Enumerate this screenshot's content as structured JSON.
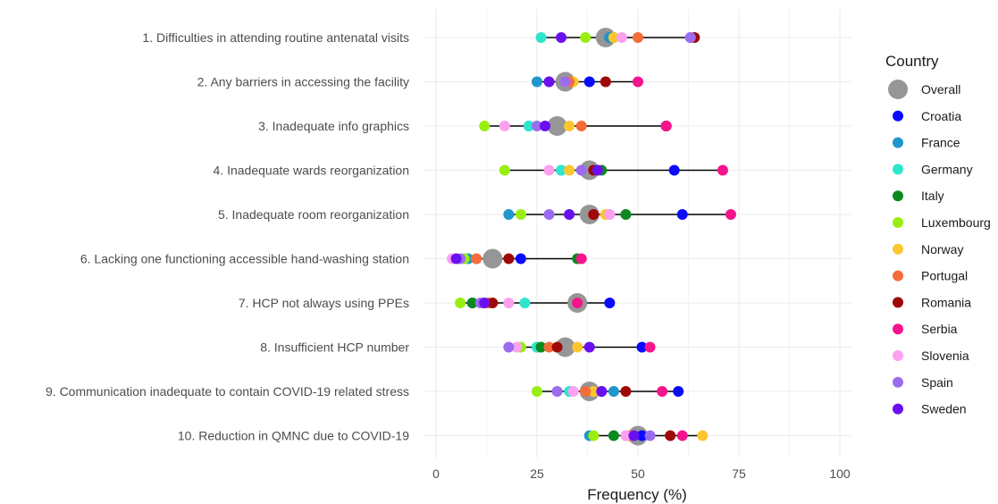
{
  "chart_data": {
    "type": "scatter",
    "subtype": "dumbbell",
    "xlabel": "Frequency (%)",
    "xlim": [
      0,
      100
    ],
    "xticks": [
      "0",
      "25",
      "50",
      "75",
      "100"
    ],
    "grid": true,
    "legend": {
      "title": "Country",
      "placement": "right",
      "entries": [
        "Overall",
        "Croatia",
        "France",
        "Germany",
        "Italy",
        "Luxembourg",
        "Norway",
        "Portugal",
        "Romania",
        "Serbia",
        "Slovenia",
        "Spain",
        "Sweden"
      ]
    },
    "colors": {
      "Overall": "#969696",
      "Croatia": "#0a0aff",
      "France": "#1f96cc",
      "Germany": "#2ee6cc",
      "Italy": "#0a8a1e",
      "Luxembourg": "#99ee11",
      "Norway": "#fcc62e",
      "Portugal": "#f56b3a",
      "Romania": "#a00808",
      "Serbia": "#f5148c",
      "Slovenia": "#fca0f0",
      "Spain": "#9c6cf0",
      "Sweden": "#6a10f0"
    },
    "categories": [
      "1. Difficulties in attending routine antenatal visits",
      "2. Any barriers in accessing the facility",
      "3. Inadequate info graphics",
      "4. Inadequate wards reorganization",
      "5. Inadequate room reorganization",
      "6. Lacking one functioning accessible hand-washing station",
      "7. HCP not always using PPEs",
      "8. Insufficient HCP number",
      "9. Communication inadequate to contain COVID-19 related stress",
      "10. Reduction in QMNC due to COVID-19"
    ],
    "series": [
      {
        "name": "Overall",
        "values": [
          42,
          32,
          30,
          38,
          38,
          14,
          35,
          32,
          38,
          50
        ]
      },
      {
        "name": "Croatia",
        "values": [
          43,
          38,
          57,
          59,
          61,
          21,
          43,
          51,
          60,
          51
        ]
      },
      {
        "name": "France",
        "values": [
          43,
          25,
          23,
          31,
          18,
          8,
          9,
          25,
          44,
          38
        ]
      },
      {
        "name": "Germany",
        "values": [
          26,
          32,
          23,
          31,
          43,
          7,
          22,
          25,
          33,
          47
        ]
      },
      {
        "name": "Italy",
        "values": [
          44,
          32,
          57,
          41,
          47,
          35,
          9,
          26,
          41,
          44
        ]
      },
      {
        "name": "Luxembourg",
        "values": [
          37,
          33,
          12,
          17,
          21,
          7,
          6,
          21,
          25,
          39
        ]
      },
      {
        "name": "Norway",
        "values": [
          44,
          34,
          33,
          33,
          42,
          10,
          13,
          35,
          39,
          66
        ]
      },
      {
        "name": "Portugal",
        "values": [
          50,
          33,
          36,
          40,
          39,
          10,
          13,
          28,
          37,
          48
        ]
      },
      {
        "name": "Romania",
        "values": [
          64,
          42,
          57,
          39,
          39,
          18,
          14,
          30,
          47,
          58
        ]
      },
      {
        "name": "Serbia",
        "values": [
          63,
          50,
          57,
          71,
          73,
          36,
          35,
          53,
          56,
          61
        ]
      },
      {
        "name": "Slovenia",
        "values": [
          46,
          32,
          17,
          28,
          43,
          4,
          18,
          20,
          34,
          47
        ]
      },
      {
        "name": "Spain",
        "values": [
          63,
          32,
          25,
          36,
          28,
          6,
          11,
          18,
          30,
          53
        ]
      },
      {
        "name": "Sweden",
        "values": [
          31,
          28,
          27,
          40,
          33,
          5,
          12,
          38,
          41,
          49
        ]
      }
    ]
  }
}
